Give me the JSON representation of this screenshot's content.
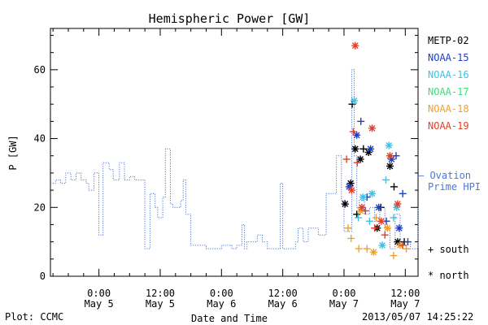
{
  "chart_data": {
    "type": "line",
    "title": "Hemispheric Power [GW]",
    "ylabel": "P [GW]",
    "xlabel": "Date and Time",
    "ylim": [
      0,
      72
    ],
    "y_ticks": [
      0,
      20,
      40,
      60
    ],
    "x_ticks": [
      {
        "t": 24,
        "label1": "0:00",
        "label2": "May 5"
      },
      {
        "t": 36,
        "label1": "12:00",
        "label2": "May 5"
      },
      {
        "t": 48,
        "label1": "0:00",
        "label2": "May 6"
      },
      {
        "t": 60,
        "label1": "12:00",
        "label2": "May 6"
      },
      {
        "t": 72,
        "label1": "0:00",
        "label2": "May 7"
      },
      {
        "t": 84,
        "label1": "12:00",
        "label2": "May 7"
      }
    ],
    "x_range_hours": [
      14.5,
      86.5
    ],
    "legend": {
      "placement": "right",
      "sats": [
        {
          "name": "METP-02",
          "color": "#000000"
        },
        {
          "name": "NOAA-15",
          "color": "#1f3fbf"
        },
        {
          "name": "NOAA-16",
          "color": "#3fc1e6"
        },
        {
          "name": "NOAA-17",
          "color": "#3fdc7a"
        },
        {
          "name": "NOAA-18",
          "color": "#f0a030"
        },
        {
          "name": "NOAA-19",
          "color": "#e0402a"
        }
      ],
      "ovation_label1": "– Ovation",
      "ovation_label2": "Prime HPI",
      "ovation_color": "#4a78d8",
      "south_label": "+ south",
      "north_label": "* north"
    },
    "ovation_series": {
      "name": "Ovation Prime HPI",
      "t": [
        14.5,
        15.5,
        16.5,
        17.5,
        18.5,
        19.5,
        20.5,
        21.5,
        22,
        23,
        24,
        24.8,
        26,
        26.8,
        28,
        29,
        30,
        31,
        33,
        34,
        35,
        35.5,
        36.5,
        37,
        38,
        38.5,
        40,
        40.5,
        41,
        42,
        45,
        46,
        47.5,
        48,
        50,
        51,
        52,
        52.5,
        53,
        55,
        56,
        57,
        58,
        59,
        59.5,
        60,
        62,
        62.5,
        63,
        64,
        65,
        67,
        68.5,
        70.5,
        71.5,
        72,
        73.5,
        74,
        74.5,
        75,
        76,
        77,
        78,
        79,
        80,
        81,
        82,
        83,
        84,
        85,
        86.5
      ],
      "values": [
        27,
        28,
        27,
        30,
        28,
        30,
        28,
        27,
        25,
        30,
        12,
        33,
        31,
        28,
        33,
        28,
        29,
        28,
        8,
        24,
        20,
        17,
        23,
        37,
        21,
        20,
        22,
        28,
        18,
        9,
        8,
        8,
        8,
        9,
        8,
        9,
        15,
        8,
        10,
        12,
        10,
        8,
        8,
        8,
        27,
        8,
        8,
        10,
        14,
        10,
        14,
        12,
        24,
        35,
        22,
        13,
        60,
        35,
        20,
        22,
        18,
        20,
        16,
        20,
        14,
        8,
        18,
        10,
        10,
        8,
        20
      ]
    },
    "scatter_points": [
      {
        "sat": "METP-02",
        "hem": "north",
        "t": 72.2,
        "v": 21
      },
      {
        "sat": "METP-02",
        "hem": "north",
        "t": 73.3,
        "v": 27
      },
      {
        "sat": "METP-02",
        "hem": "north",
        "t": 74.2,
        "v": 37
      },
      {
        "sat": "METP-02",
        "hem": "north",
        "t": 75.2,
        "v": 34
      },
      {
        "sat": "METP-02",
        "hem": "north",
        "t": 76.8,
        "v": 36
      },
      {
        "sat": "METP-02",
        "hem": "north",
        "t": 78.5,
        "v": 14
      },
      {
        "sat": "METP-02",
        "hem": "north",
        "t": 81,
        "v": 32
      },
      {
        "sat": "METP-02",
        "hem": "north",
        "t": 82.5,
        "v": 10
      },
      {
        "sat": "METP-02",
        "hem": "south",
        "t": 73.6,
        "v": 50
      },
      {
        "sat": "METP-02",
        "hem": "south",
        "t": 74.5,
        "v": 18
      },
      {
        "sat": "METP-02",
        "hem": "south",
        "t": 75.8,
        "v": 37
      },
      {
        "sat": "METP-02",
        "hem": "south",
        "t": 79.2,
        "v": 20
      },
      {
        "sat": "METP-02",
        "hem": "south",
        "t": 81.8,
        "v": 26
      },
      {
        "sat": "METP-02",
        "hem": "south",
        "t": 83.8,
        "v": 10
      },
      {
        "sat": "NOAA-15",
        "hem": "north",
        "t": 73,
        "v": 26
      },
      {
        "sat": "NOAA-15",
        "hem": "north",
        "t": 74.5,
        "v": 41
      },
      {
        "sat": "NOAA-15",
        "hem": "north",
        "t": 77.2,
        "v": 37
      },
      {
        "sat": "NOAA-15",
        "hem": "north",
        "t": 78.8,
        "v": 20
      },
      {
        "sat": "NOAA-15",
        "hem": "north",
        "t": 81.3,
        "v": 34
      },
      {
        "sat": "NOAA-15",
        "hem": "north",
        "t": 82.8,
        "v": 14
      },
      {
        "sat": "NOAA-15",
        "hem": "south",
        "t": 75.3,
        "v": 45
      },
      {
        "sat": "NOAA-15",
        "hem": "south",
        "t": 76.5,
        "v": 23
      },
      {
        "sat": "NOAA-15",
        "hem": "south",
        "t": 80.3,
        "v": 16
      },
      {
        "sat": "NOAA-15",
        "hem": "south",
        "t": 82.2,
        "v": 35
      },
      {
        "sat": "NOAA-15",
        "hem": "south",
        "t": 83.5,
        "v": 24
      },
      {
        "sat": "NOAA-15",
        "hem": "south",
        "t": 84.5,
        "v": 10
      },
      {
        "sat": "NOAA-16",
        "hem": "north",
        "t": 74,
        "v": 51
      },
      {
        "sat": "NOAA-16",
        "hem": "north",
        "t": 75.7,
        "v": 23
      },
      {
        "sat": "NOAA-16",
        "hem": "north",
        "t": 77.5,
        "v": 24
      },
      {
        "sat": "NOAA-16",
        "hem": "north",
        "t": 79.5,
        "v": 9
      },
      {
        "sat": "NOAA-16",
        "hem": "north",
        "t": 80.8,
        "v": 38
      },
      {
        "sat": "NOAA-16",
        "hem": "north",
        "t": 82.3,
        "v": 20
      },
      {
        "sat": "NOAA-16",
        "hem": "south",
        "t": 74.8,
        "v": 17
      },
      {
        "sat": "NOAA-16",
        "hem": "south",
        "t": 77,
        "v": 16
      },
      {
        "sat": "NOAA-16",
        "hem": "south",
        "t": 80.2,
        "v": 28
      },
      {
        "sat": "NOAA-16",
        "hem": "south",
        "t": 81.7,
        "v": 17
      },
      {
        "sat": "NOAA-18",
        "hem": "north",
        "t": 75.2,
        "v": 19
      },
      {
        "sat": "NOAA-18",
        "hem": "north",
        "t": 77.8,
        "v": 7
      },
      {
        "sat": "NOAA-18",
        "hem": "north",
        "t": 80.5,
        "v": 14
      },
      {
        "sat": "NOAA-18",
        "hem": "north",
        "t": 83,
        "v": 9
      },
      {
        "sat": "NOAA-18",
        "hem": "south",
        "t": 72.8,
        "v": 14
      },
      {
        "sat": "NOAA-18",
        "hem": "south",
        "t": 73.4,
        "v": 11
      },
      {
        "sat": "NOAA-18",
        "hem": "south",
        "t": 74.9,
        "v": 8
      },
      {
        "sat": "NOAA-18",
        "hem": "south",
        "t": 76.5,
        "v": 8
      },
      {
        "sat": "NOAA-18",
        "hem": "south",
        "t": 78.3,
        "v": 17
      },
      {
        "sat": "NOAA-18",
        "hem": "south",
        "t": 81.7,
        "v": 6
      },
      {
        "sat": "NOAA-18",
        "hem": "south",
        "t": 84.2,
        "v": 8
      },
      {
        "sat": "NOAA-19",
        "hem": "north",
        "t": 73.5,
        "v": 25
      },
      {
        "sat": "NOAA-19",
        "hem": "north",
        "t": 74.2,
        "v": 67
      },
      {
        "sat": "NOAA-19",
        "hem": "north",
        "t": 75.5,
        "v": 20
      },
      {
        "sat": "NOAA-19",
        "hem": "north",
        "t": 77.5,
        "v": 43
      },
      {
        "sat": "NOAA-19",
        "hem": "north",
        "t": 79.3,
        "v": 16
      },
      {
        "sat": "NOAA-19",
        "hem": "north",
        "t": 81,
        "v": 35
      },
      {
        "sat": "NOAA-19",
        "hem": "north",
        "t": 82.5,
        "v": 21
      },
      {
        "sat": "NOAA-19",
        "hem": "south",
        "t": 72.5,
        "v": 34
      },
      {
        "sat": "NOAA-19",
        "hem": "south",
        "t": 73.8,
        "v": 42
      },
      {
        "sat": "NOAA-19",
        "hem": "south",
        "t": 74.6,
        "v": 33
      },
      {
        "sat": "NOAA-19",
        "hem": "south",
        "t": 76.2,
        "v": 19
      },
      {
        "sat": "NOAA-19",
        "hem": "south",
        "t": 78,
        "v": 14
      },
      {
        "sat": "NOAA-19",
        "hem": "south",
        "t": 80,
        "v": 12
      },
      {
        "sat": "NOAA-19",
        "hem": "south",
        "t": 83.5,
        "v": 9
      }
    ]
  },
  "footer": {
    "plot_by": "Plot: CCMC",
    "timestamp": "2013/05/07 14:25:22"
  }
}
